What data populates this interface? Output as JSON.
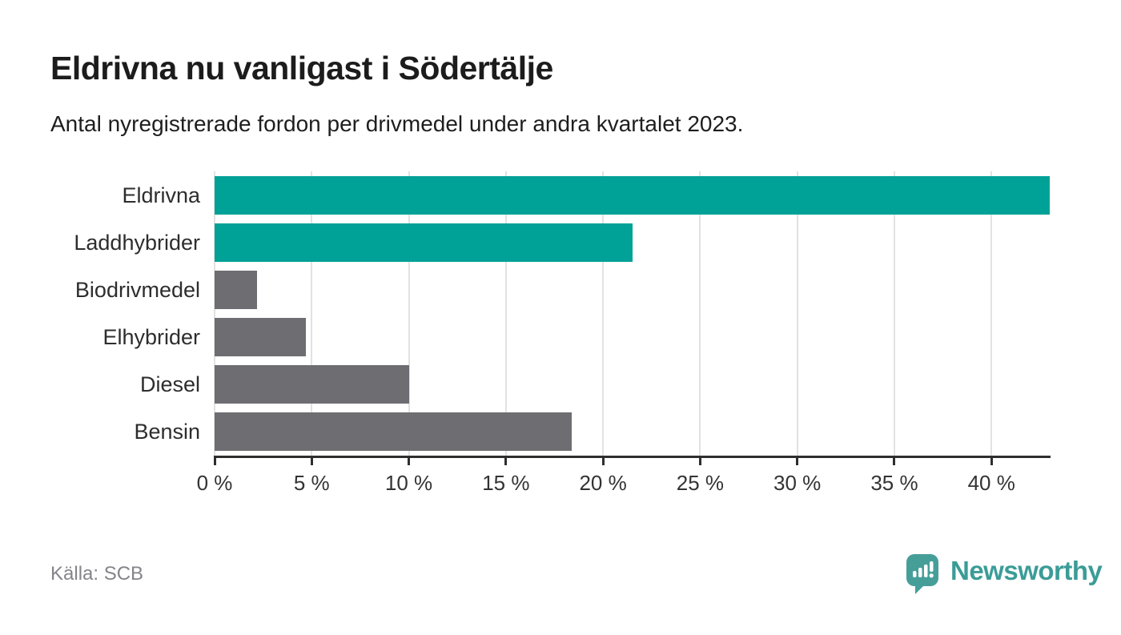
{
  "page": {
    "title": "Eldrivna nu vanligast i Södertälje",
    "subtitle": "Antal nyregistrerade fordon per drivmedel under andra kvartalet 2023.",
    "source": "Källa: SCB",
    "brand": {
      "name": "Newsworthy",
      "wordmark_color": "#3B9C97",
      "icon": "bar-chart-speech-bubble-icon",
      "icon_color": "#469E99"
    }
  },
  "chart_data": {
    "type": "bar",
    "orientation": "horizontal",
    "title": "Eldrivna nu vanligast i Södertälje",
    "subtitle": "Antal nyregistrerade fordon per drivmedel under andra kvartalet 2023.",
    "categories": [
      "Eldrivna",
      "Laddhybrider",
      "Biodrivmedel",
      "Elhybrider",
      "Diesel",
      "Bensin"
    ],
    "values": [
      43.0,
      21.5,
      2.2,
      4.7,
      10.0,
      18.4
    ],
    "unit": "%",
    "bar_colors": [
      "#00A197",
      "#00A197",
      "#6D6D72",
      "#6D6D72",
      "#6D6D72",
      "#6D6D72"
    ],
    "highlight_color": "#00A197",
    "default_color": "#6D6D72",
    "xlim": [
      0,
      43
    ],
    "x_ticks": [
      0,
      5,
      10,
      15,
      20,
      25,
      30,
      35,
      40
    ],
    "x_tick_labels": [
      "0 %",
      "5 %",
      "10 %",
      "15 %",
      "20 %",
      "25 %",
      "30 %",
      "35 %",
      "40 %"
    ],
    "grid": true,
    "gridline_color": "#e2e2e2",
    "axis_color": "#2e2e2e",
    "category_label_color": "#2d2d2d",
    "tick_label_color": "#333333",
    "legend": "none",
    "source": "Källa: SCB"
  }
}
